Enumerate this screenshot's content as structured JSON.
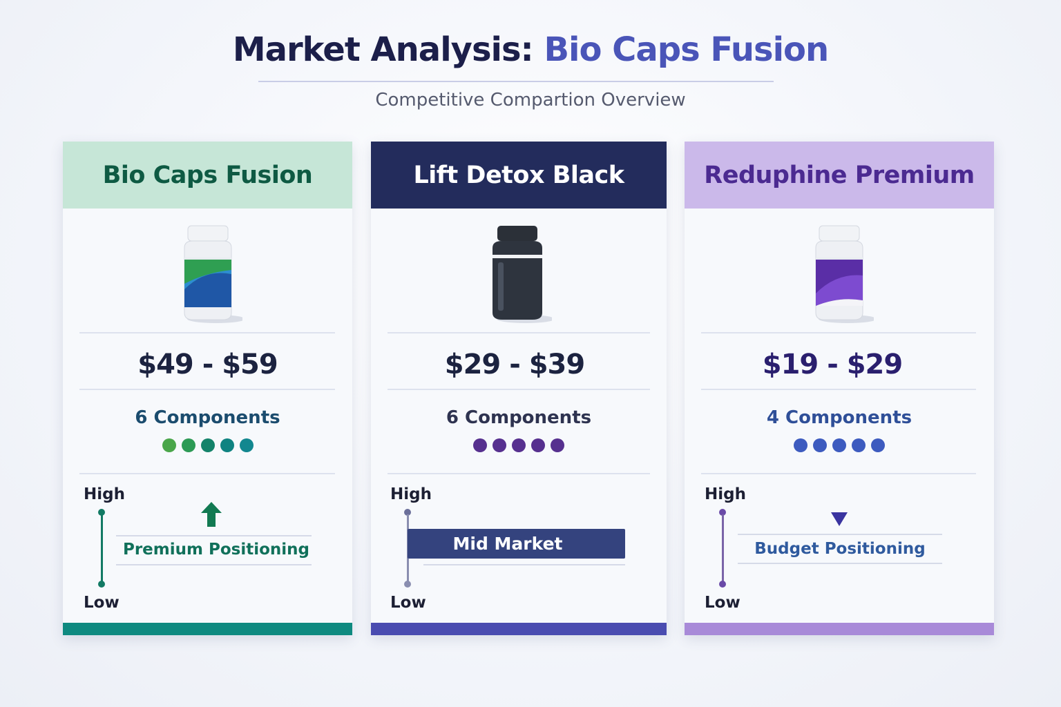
{
  "header": {
    "title_main": "Market Analysis: ",
    "title_accent": "Bio Caps Fusion",
    "subtitle": "Competitive Compartion Overview"
  },
  "cards": [
    {
      "name": "Bio Caps Fusion",
      "price": "$49 - $59",
      "components": "6 Components",
      "scale_high": "High",
      "scale_low": "Low",
      "positioning": "Premium Positioning",
      "colors": {
        "header_bg": "#c6e6d7",
        "header_text": "#0e5a43",
        "accent": "#0f8a80",
        "dots": [
          "#4aa64a",
          "#2c9a55",
          "#14836a",
          "#0f8381",
          "#12878f"
        ]
      }
    },
    {
      "name": "Lift Detox Black",
      "price": "$29 - $39",
      "components": "6 Components",
      "scale_high": "High",
      "scale_low": "Low",
      "positioning": "Mid Market",
      "colors": {
        "header_bg": "#232c5c",
        "header_text": "#ffffff",
        "accent": "#4a4cb0",
        "dots": [
          "#56308f",
          "#56308f",
          "#56308f",
          "#56308f",
          "#56308f"
        ]
      }
    },
    {
      "name": "Reduphine Premium",
      "price": "$19 - $29",
      "components": "4 Components",
      "scale_high": "High",
      "scale_low": "Low",
      "positioning": "Budget Positioning",
      "colors": {
        "header_bg": "#cbb9ea",
        "header_text": "#4b2a91",
        "accent": "#a88ad8",
        "dots": [
          "#3d5bbf",
          "#3d5bbf",
          "#3d5bbf",
          "#3d5bbf",
          "#3d5bbf"
        ]
      }
    }
  ]
}
